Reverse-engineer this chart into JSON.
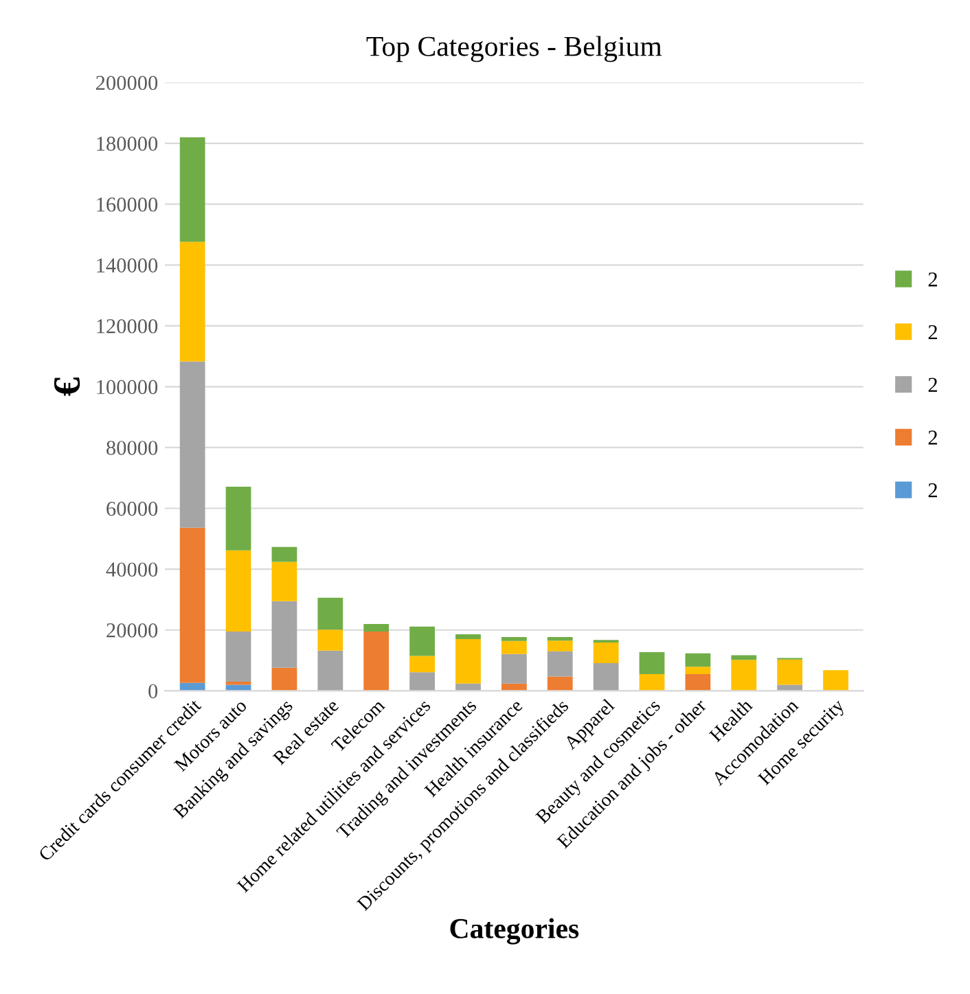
{
  "chart_data": {
    "type": "bar",
    "title": "Top Categories - Belgium",
    "xlabel": "Categories",
    "ylabel": "€",
    "categories": [
      "Credit cards consumer credit",
      "Motors auto",
      "Banking and savings",
      "Real estate",
      "Telecom",
      "Home related utilities and services",
      "Trading and investments",
      "Health insurance",
      "Discounts, promotions and classifieds",
      "Apparel",
      "Beauty and cosmetics",
      "Education and jobs - other",
      "Health",
      "Accomodation",
      "Home security"
    ],
    "stacked": true,
    "series": [
      {
        "name": "2",
        "color": "#5b9bd5",
        "values": [
          2600,
          2000,
          0,
          0,
          0,
          0,
          0,
          0,
          0,
          0,
          0,
          0,
          0,
          0,
          0
        ]
      },
      {
        "name": "2",
        "color": "#ed7d31",
        "values": [
          51000,
          1000,
          7600,
          0,
          19500,
          0,
          0,
          2400,
          4700,
          0,
          0,
          5500,
          0,
          0,
          0
        ]
      },
      {
        "name": "2",
        "color": "#a5a5a5",
        "values": [
          54700,
          16500,
          21900,
          13200,
          0,
          6100,
          2400,
          9700,
          8300,
          9100,
          0,
          0,
          0,
          2000,
          null
        ]
      },
      {
        "name": "2",
        "color": "#ffc000",
        "values": [
          39300,
          26700,
          12900,
          6900,
          0,
          5400,
          14600,
          4300,
          3500,
          6800,
          5500,
          2400,
          10200,
          8300,
          6800
        ]
      },
      {
        "name": "2",
        "color": "#70ad47",
        "values": [
          34400,
          20900,
          4900,
          10500,
          2500,
          9600,
          1600,
          1300,
          1200,
          800,
          7200,
          4400,
          1500,
          500,
          0
        ]
      }
    ],
    "ylim": [
      0,
      200000
    ],
    "yticks": [
      0,
      20000,
      40000,
      60000,
      80000,
      100000,
      120000,
      140000,
      160000,
      180000,
      200000
    ],
    "grid": "y",
    "legend": "right"
  }
}
